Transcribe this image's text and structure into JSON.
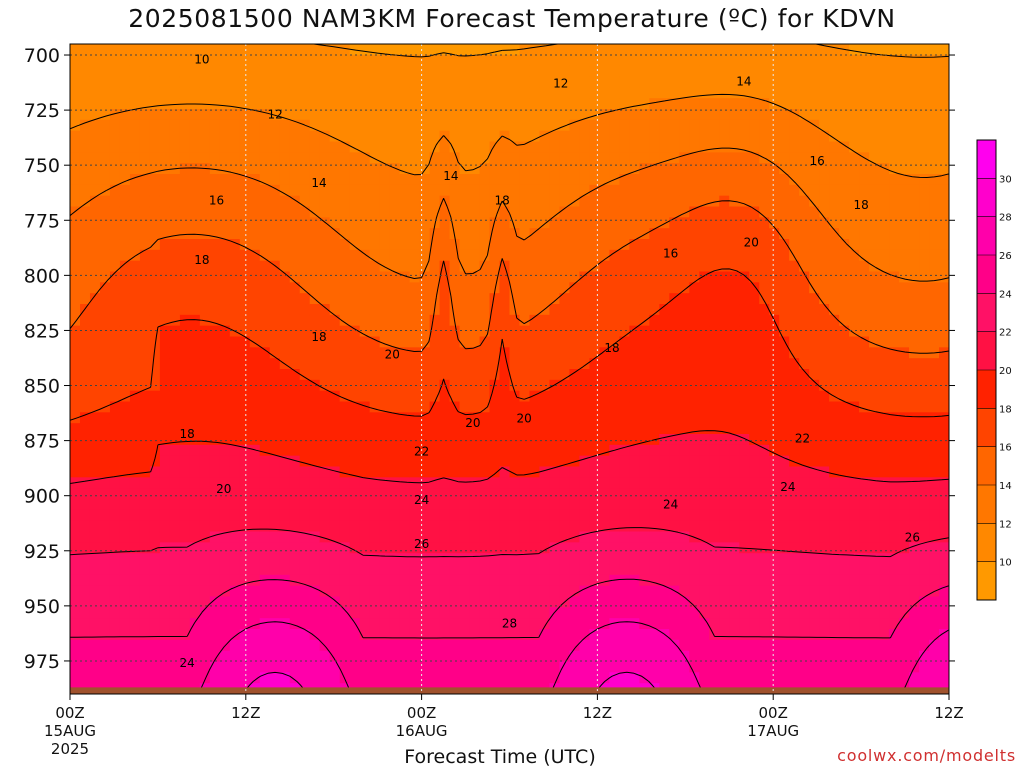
{
  "title": "2025081500 NAM3KM Forecast Temperature (ºC) for KDVN",
  "credit": "coolwx.com/modelts",
  "chart_data": {
    "type": "contour",
    "title": "2025081500 NAM3KM Forecast Temperature (ºC) for KDVN",
    "xlabel": "Forecast Time (UTC)",
    "ylabel": "",
    "x_ticks": [
      {
        "label": "00Z",
        "sub1": "15AUG",
        "sub2": "2025",
        "hour": 0
      },
      {
        "label": "12Z",
        "sub1": "",
        "sub2": "",
        "hour": 12
      },
      {
        "label": "00Z",
        "sub1": "16AUG",
        "sub2": "",
        "hour": 24
      },
      {
        "label": "12Z",
        "sub1": "",
        "sub2": "",
        "hour": 36
      },
      {
        "label": "00Z",
        "sub1": "17AUG",
        "sub2": "",
        "hour": 48
      },
      {
        "label": "12Z",
        "sub1": "",
        "sub2": "",
        "hour": 60
      }
    ],
    "x_range_hours": [
      0,
      60
    ],
    "y_ticks": [
      700,
      725,
      750,
      775,
      800,
      825,
      850,
      875,
      900,
      925,
      950,
      975
    ],
    "y_range_hPa": [
      695,
      990
    ],
    "surface_pressure_hPa": 987,
    "grid": true,
    "colorbar": {
      "ticks": [
        10,
        12,
        14,
        16,
        18,
        20,
        22,
        24,
        26,
        28,
        30
      ],
      "colors": [
        "#ff9900",
        "#ff8800",
        "#ff7700",
        "#ff6600",
        "#ff4400",
        "#ff2200",
        "#ff1144",
        "#ff1166",
        "#ff0088",
        "#ff00aa",
        "#ff00cc",
        "#ff00ee"
      ]
    },
    "contour_labels": [
      {
        "text": "10",
        "hour": 9.0,
        "p": 702
      },
      {
        "text": "12",
        "hour": 14.0,
        "p": 727
      },
      {
        "text": "12",
        "hour": 33.5,
        "p": 713
      },
      {
        "text": "14",
        "hour": 46.0,
        "p": 712
      },
      {
        "text": "14",
        "hour": 17.0,
        "p": 758
      },
      {
        "text": "14",
        "hour": 26.0,
        "p": 755
      },
      {
        "text": "16",
        "hour": 10.0,
        "p": 766
      },
      {
        "text": "16",
        "hour": 51.0,
        "p": 748
      },
      {
        "text": "16",
        "hour": 41.0,
        "p": 790
      },
      {
        "text": "18",
        "hour": 9.0,
        "p": 793
      },
      {
        "text": "18",
        "hour": 29.5,
        "p": 766
      },
      {
        "text": "18",
        "hour": 54.0,
        "p": 768
      },
      {
        "text": "18",
        "hour": 17.0,
        "p": 828
      },
      {
        "text": "18",
        "hour": 37.0,
        "p": 833
      },
      {
        "text": "18",
        "hour": 8.0,
        "p": 872
      },
      {
        "text": "20",
        "hour": 22.0,
        "p": 836
      },
      {
        "text": "20",
        "hour": 46.5,
        "p": 785
      },
      {
        "text": "20",
        "hour": 27.5,
        "p": 867
      },
      {
        "text": "20",
        "hour": 31.0,
        "p": 865
      },
      {
        "text": "20",
        "hour": 10.5,
        "p": 897
      },
      {
        "text": "22",
        "hour": 24.0,
        "p": 880
      },
      {
        "text": "22",
        "hour": 50.0,
        "p": 874
      },
      {
        "text": "24",
        "hour": 24.0,
        "p": 902
      },
      {
        "text": "24",
        "hour": 41.0,
        "p": 904
      },
      {
        "text": "24",
        "hour": 49.0,
        "p": 896
      },
      {
        "text": "24",
        "hour": 8.0,
        "p": 976
      },
      {
        "text": "26",
        "hour": 24.0,
        "p": 922
      },
      {
        "text": "26",
        "hour": 57.5,
        "p": 919
      },
      {
        "text": "28",
        "hour": 30.0,
        "p": 958
      }
    ]
  }
}
